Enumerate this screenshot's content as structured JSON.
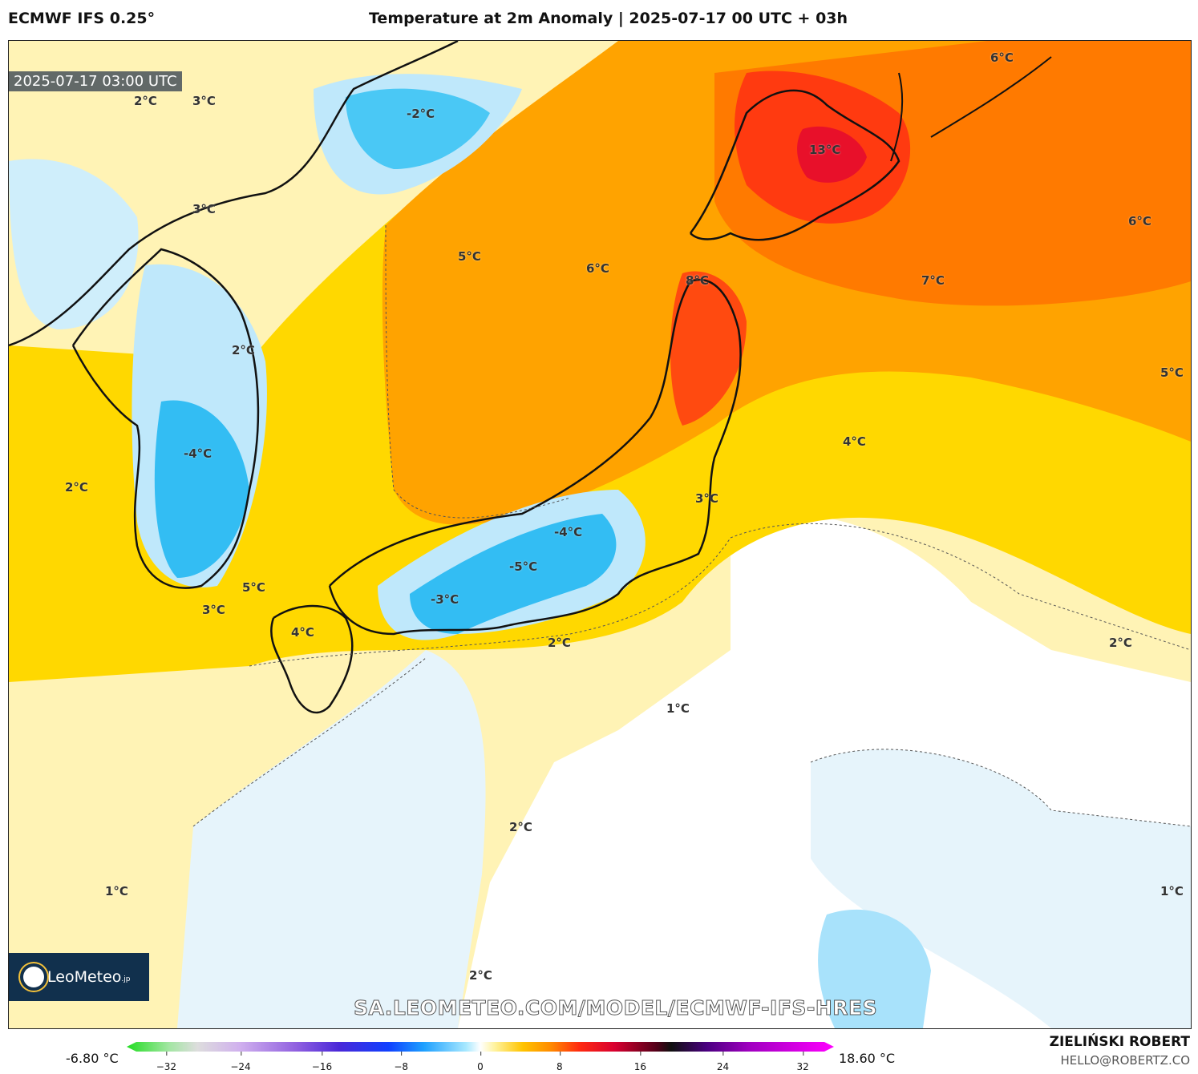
{
  "header": {
    "model": "ECMWF IFS 0.25°",
    "title": "Temperature at 2m Anomaly | 2025-07-17 00 UTC + 03h"
  },
  "map": {
    "valid_time": "2025-07-17 03:00 UTC",
    "contour_labels": [
      "2°C",
      "3°C",
      "-2°C",
      "3°C",
      "5°C",
      "6°C",
      "6°C",
      "13°C",
      "6°C",
      "8°C",
      "7°C",
      "2°C",
      "5°C",
      "-4°C",
      "4°C",
      "2°C",
      "3°C",
      "-4°C",
      "-5°C",
      "5°C",
      "3°C",
      "-3°C",
      "4°C",
      "2°C",
      "2°C",
      "1°C",
      "2°C",
      "1°C",
      "1°C",
      "2°C"
    ],
    "watermark": "SA.LEOMETEO.COM/MODEL/ECMWF-IFS-HRES",
    "logo_text": "LeoMeteo",
    "logo_suffix": ".jp"
  },
  "legend": {
    "min_label": "-6.80 °C",
    "max_label": "18.60 °C",
    "ticks": [
      "−32",
      "−24",
      "−16",
      "−8",
      "0",
      "8",
      "16",
      "24",
      "32"
    ]
  },
  "credit": {
    "name": "ZIELIŃSKI ROBERT",
    "email": "HELLO@ROBERTZ.CO"
  },
  "colors": {
    "warm_strong": "#ff3a10",
    "warm": "#ff9a00",
    "mild": "#ffd400",
    "slight": "#fff3b5",
    "neutral": "#ffffff",
    "cool": "#e5f4fc",
    "cold": "#3fc4f5"
  }
}
